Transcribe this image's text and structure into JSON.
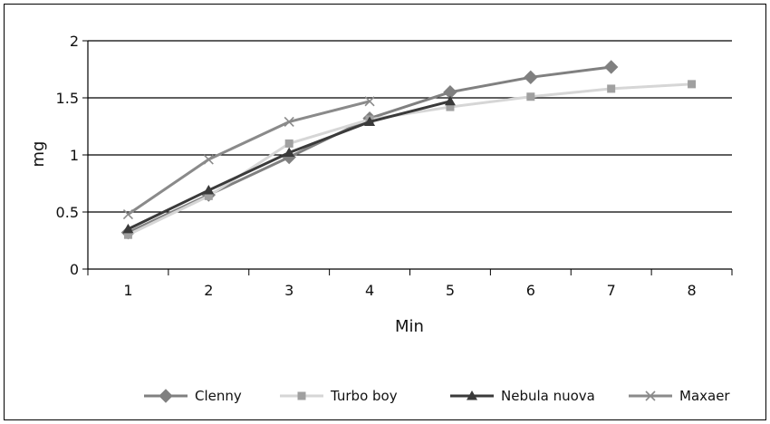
{
  "chart_data": {
    "type": "line",
    "title": "",
    "xlabel": "Min",
    "ylabel": "mg",
    "categories": [
      "1",
      "2",
      "3",
      "4",
      "5",
      "6",
      "7",
      "8"
    ],
    "ylim": [
      0,
      2
    ],
    "yticks": [
      "0",
      "0.5",
      "1",
      "1.5",
      "2"
    ],
    "grid": true,
    "legend_position": "bottom",
    "series": [
      {
        "name": "Clenny",
        "marker": "diamond",
        "color": "#808080",
        "values": [
          0.32,
          0.65,
          0.98,
          1.32,
          1.55,
          1.68,
          1.77,
          null
        ]
      },
      {
        "name": "Turbo boy",
        "marker": "square",
        "color": "#d6d6d6",
        "marker_color": "#a0a0a0",
        "values": [
          0.3,
          0.64,
          1.1,
          1.31,
          1.42,
          1.51,
          1.58,
          1.62
        ]
      },
      {
        "name": "Nebula nuova",
        "marker": "triangle",
        "color": "#3a3a3a",
        "values": [
          0.35,
          0.69,
          1.02,
          1.29,
          1.47,
          null,
          null,
          null
        ]
      },
      {
        "name": "Maxaer",
        "marker": "x",
        "color": "#8a8a8a",
        "values": [
          0.48,
          0.96,
          1.29,
          1.47,
          null,
          null,
          null,
          null
        ]
      }
    ]
  }
}
